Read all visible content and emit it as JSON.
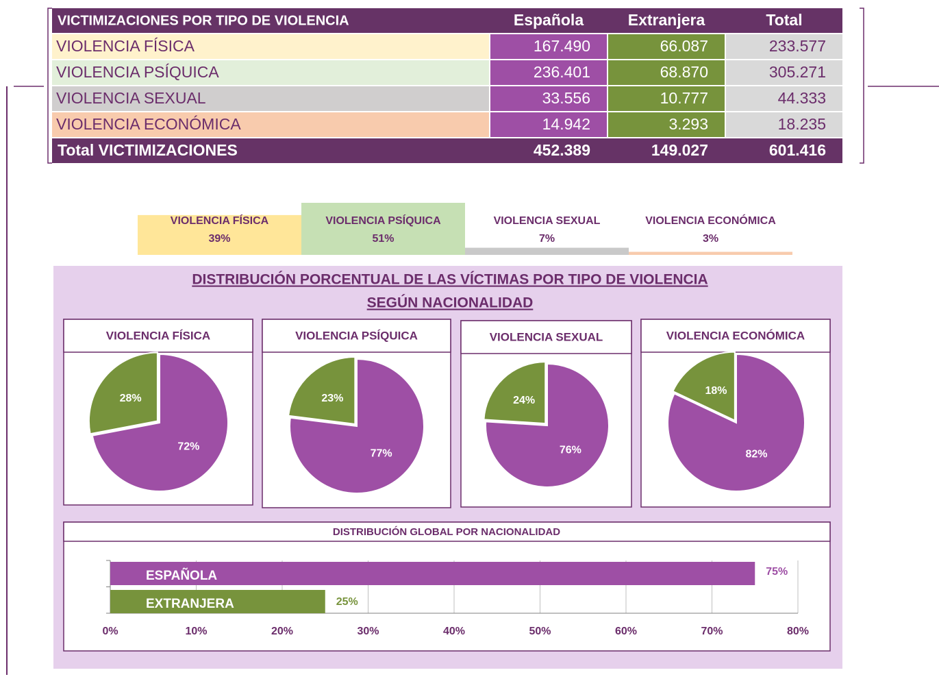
{
  "table": {
    "header": [
      "VICTIMIZACIONES POR TIPO DE VIOLENCIA",
      "Española",
      "Extranjera",
      "Total"
    ],
    "rows": [
      [
        "VIOLENCIA FÍSICA",
        "167.490",
        "66.087",
        "233.577"
      ],
      [
        "VIOLENCIA PSÍQUICA",
        "236.401",
        "68.870",
        "305.271"
      ],
      [
        "VIOLENCIA SEXUAL",
        "33.556",
        "10.777",
        "44.333"
      ],
      [
        "VIOLENCIA ECONÓMICA",
        "14.942",
        "3.293",
        "18.235"
      ]
    ],
    "row_colors": [
      "#fff2cc",
      "#e2efda",
      "#d0cece",
      "#f8cbad"
    ],
    "total": [
      "Total VICTIMIZACIONES",
      "452.389",
      "149.027",
      "601.416"
    ]
  },
  "panel": {
    "title": [
      "DISTRIBUCIÓN PORCENTUAL DE LAS VÍCTIMAS POR TIPO DE VIOLENCIA ",
      "SEGÚN NACIONALIDAD"
    ]
  },
  "chart_data": [
    {
      "type": "bar",
      "categories": [
        "VIOLENCIA FÍSICA",
        "VIOLENCIA PSÍQUICA",
        "VIOLENCIA SEXUAL",
        "VIOLENCIA ECONÓMICA"
      ],
      "values": [
        39,
        51,
        7,
        3
      ],
      "value_labels": [
        "39%",
        "51%",
        "7%",
        "3%"
      ],
      "colors": [
        "#ffe699",
        "#c6e0b4",
        "#c9c9c9",
        "#f8cbad"
      ]
    },
    {
      "type": "pie",
      "title": "VIOLENCIA FÍSICA",
      "values": [
        72,
        28
      ],
      "value_labels": [
        "72%",
        "28%"
      ],
      "colors": [
        "#9e4fa5",
        "#77933c"
      ]
    },
    {
      "type": "pie",
      "title": "VIOLENCIA PSÍQUICA",
      "values": [
        77,
        23
      ],
      "value_labels": [
        "77%",
        "23%"
      ],
      "colors": [
        "#9e4fa5",
        "#77933c"
      ]
    },
    {
      "type": "pie",
      "title": "VIOLENCIA SEXUAL",
      "values": [
        76,
        24
      ],
      "value_labels": [
        "76%",
        "24%"
      ],
      "colors": [
        "#9e4fa5",
        "#77933c"
      ]
    },
    {
      "type": "pie",
      "title": "VIOLENCIA ECONÓMICA",
      "values": [
        82,
        18
      ],
      "value_labels": [
        "82%",
        "18%"
      ],
      "colors": [
        "#9e4fa5",
        "#77933c"
      ]
    },
    {
      "type": "barh",
      "title": "DISTRIBUCIÓN GLOBAL POR NACIONALIDAD",
      "categories": [
        "ESPAÑOLA",
        "EXTRANJERA"
      ],
      "values": [
        75,
        25
      ],
      "value_labels": [
        "75%",
        "25%"
      ],
      "colors": [
        "#9e4fa5",
        "#77933c"
      ],
      "xlim": [
        0,
        80
      ],
      "xticks": [
        {
          "value": 0,
          "label": "0%"
        },
        {
          "value": 10,
          "label": "10%"
        },
        {
          "value": 20,
          "label": "20%"
        },
        {
          "value": 30,
          "label": "30%"
        },
        {
          "value": 40,
          "label": "40%"
        },
        {
          "value": 50,
          "label": "50%"
        },
        {
          "value": 60,
          "label": "60%"
        },
        {
          "value": 70,
          "label": "70%"
        },
        {
          "value": 80,
          "label": "80%"
        }
      ],
      "grid": true
    }
  ]
}
